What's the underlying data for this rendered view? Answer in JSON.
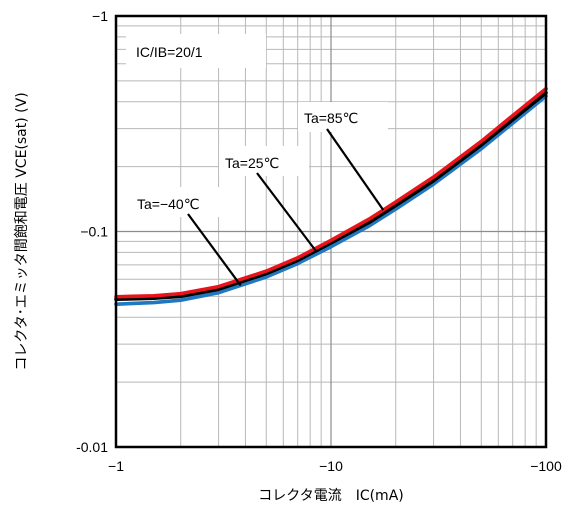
{
  "chart_data": {
    "type": "line",
    "xscale": "log",
    "yscale": "log",
    "xlim": [
      -1,
      -100
    ],
    "ylim": [
      -0.01,
      -1
    ],
    "xticks": [
      {
        "value": -1,
        "label": "−1"
      },
      {
        "value": -10,
        "label": "−10"
      },
      {
        "value": -100,
        "label": "−100"
      }
    ],
    "yticks": [
      {
        "value": -0.01,
        "label": "-0.01"
      },
      {
        "value": -0.1,
        "label": "−0.1"
      },
      {
        "value": -1,
        "label": "−1"
      }
    ],
    "xlabel": "コレクタ電流　IC(mA)",
    "ylabel": "コレクタ･エミッタ間飽和電圧 VCE(sat) (V)",
    "grid": true,
    "condition_label": "IC/IB=20/1",
    "series": [
      {
        "name": "Ta=−40℃",
        "color": "#1f78c0",
        "x": [
          -1,
          -1.5,
          -2,
          -3,
          -5,
          -7,
          -10,
          -15,
          -20,
          -30,
          -50,
          -70,
          -100
        ],
        "y": [
          -0.046,
          -0.0468,
          -0.048,
          -0.052,
          -0.0615,
          -0.071,
          -0.085,
          -0.106,
          -0.127,
          -0.166,
          -0.242,
          -0.318,
          -0.425
        ]
      },
      {
        "name": "Ta=25℃",
        "color": "#000000",
        "x": [
          -1,
          -1.5,
          -2,
          -3,
          -5,
          -7,
          -10,
          -15,
          -20,
          -30,
          -50,
          -70,
          -100
        ],
        "y": [
          -0.0485,
          -0.049,
          -0.05,
          -0.054,
          -0.0638,
          -0.0735,
          -0.0885,
          -0.11,
          -0.132,
          -0.172,
          -0.252,
          -0.33,
          -0.44
        ]
      },
      {
        "name": "Ta=85℃",
        "color": "#e8141a",
        "x": [
          -1,
          -1.5,
          -2,
          -3,
          -5,
          -7,
          -10,
          -15,
          -20,
          -30,
          -50,
          -70,
          -100
        ],
        "y": [
          -0.0498,
          -0.0503,
          -0.0515,
          -0.0555,
          -0.0655,
          -0.0755,
          -0.091,
          -0.114,
          -0.137,
          -0.179,
          -0.262,
          -0.345,
          -0.46
        ]
      }
    ],
    "callouts": [
      {
        "text": "Ta=85℃",
        "series": 2,
        "at_x": -17.5
      },
      {
        "text": "Ta=25℃",
        "series": 1,
        "at_x": -8.5
      },
      {
        "text": "Ta=−40℃",
        "series": 0,
        "at_x": -3.8
      }
    ]
  }
}
